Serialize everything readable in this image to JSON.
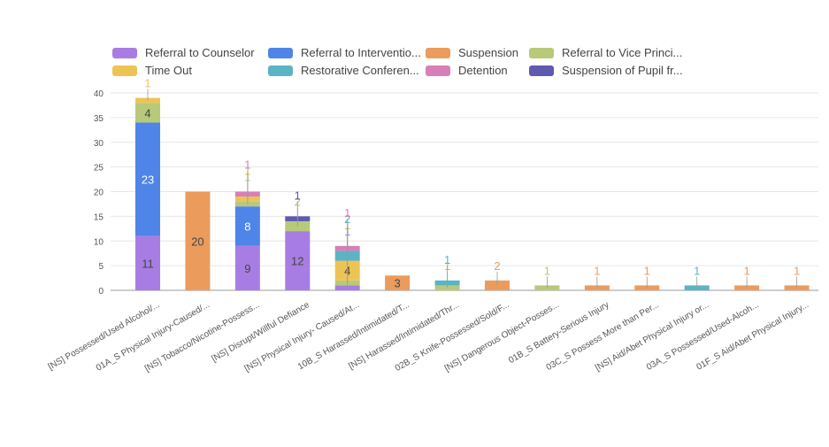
{
  "chart_data": {
    "type": "bar",
    "stacked": true,
    "title": "",
    "xlabel": "",
    "ylabel": "",
    "ylim": [
      0,
      40
    ],
    "yticks": [
      0,
      5,
      10,
      15,
      20,
      25,
      30,
      35,
      40
    ],
    "grid": true,
    "legend_position": "top",
    "categories": [
      "[NS] Possessed/Used Alcohol/...",
      "01A_S Physical Injury-Caused/...",
      "[NS] Tobacco/Nicotine-Possess...",
      "[NS] Disrupt/Willful Defiance",
      "[NS] Physical Injury- Caused/At...",
      "10B_S Harassed/Intimidated/T...",
      "[NS] Harassed/Intimidated/Thr...",
      "02B_S Knife-Possessed/Sold/F...",
      "[NS] Dangerous Object-Posses...",
      "01B_S Battery-Serious Injury",
      "03C_S Possess More than Per...",
      "[NS] Aid/Abet Physical Injury or...",
      "03A_S Possessed/Used-Alcoh...",
      "01F_S Aid/Abet Physical Injury..."
    ],
    "series": [
      {
        "name": "Referral to Counselor",
        "legend_label": "Referral to Counselor",
        "color": "#a87de3",
        "values": [
          11,
          0,
          9,
          12,
          1,
          0,
          0,
          0,
          0,
          0,
          0,
          0,
          0,
          0
        ]
      },
      {
        "name": "Referral to Intervention",
        "legend_label": "Referral to Interventio...",
        "color": "#4f84e8",
        "values": [
          23,
          0,
          8,
          0,
          0,
          0,
          0,
          0,
          0,
          0,
          0,
          0,
          0,
          0
        ]
      },
      {
        "name": "Suspension",
        "legend_label": "Suspension",
        "color": "#eb9c5d",
        "values": [
          0,
          20,
          0,
          0,
          0,
          3,
          0,
          2,
          0,
          1,
          1,
          0,
          1,
          1
        ]
      },
      {
        "name": "Referral to Vice Principal",
        "legend_label": "Referral to Vice Princi...",
        "color": "#b8c97a",
        "values": [
          4,
          0,
          1,
          2,
          1,
          0,
          1,
          0,
          1,
          0,
          0,
          0,
          0,
          0
        ]
      },
      {
        "name": "Time Out",
        "legend_label": "Time Out",
        "color": "#edc454",
        "values": [
          1,
          0,
          1,
          0,
          4,
          0,
          0,
          0,
          0,
          0,
          0,
          0,
          0,
          0
        ]
      },
      {
        "name": "Restorative Conference",
        "legend_label": "Restorative Conferen...",
        "color": "#5ab4c6",
        "values": [
          0,
          0,
          0,
          0,
          2,
          0,
          1,
          0,
          0,
          0,
          0,
          1,
          0,
          0
        ]
      },
      {
        "name": "Detention",
        "legend_label": "Detention",
        "color": "#d97fb8",
        "values": [
          0,
          0,
          1,
          0,
          1,
          0,
          0,
          0,
          0,
          0,
          0,
          0,
          0,
          0
        ]
      },
      {
        "name": "Suspension of Pupil from",
        "legend_label": "Suspension of Pupil fr...",
        "color": "#5d5ab0",
        "values": [
          0,
          0,
          0,
          1,
          0,
          0,
          0,
          0,
          0,
          0,
          0,
          0,
          0,
          0
        ]
      }
    ]
  }
}
